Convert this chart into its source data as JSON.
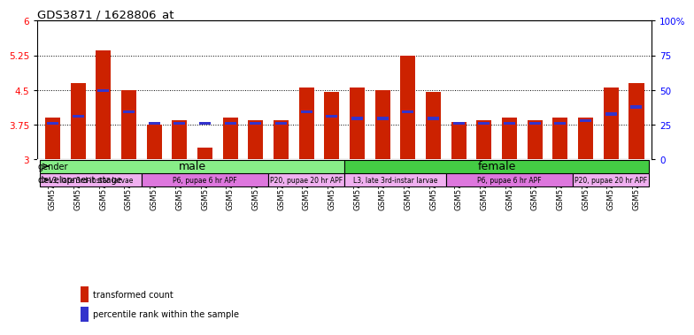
{
  "title": "GDS3871 / 1628806_at",
  "samples": [
    "GSM572821",
    "GSM572822",
    "GSM572823",
    "GSM572824",
    "GSM572829",
    "GSM572830",
    "GSM572831",
    "GSM572832",
    "GSM572837",
    "GSM572838",
    "GSM572839",
    "GSM572840",
    "GSM572817",
    "GSM572818",
    "GSM572819",
    "GSM572820",
    "GSM572825",
    "GSM572826",
    "GSM572827",
    "GSM572828",
    "GSM572833",
    "GSM572834",
    "GSM572835",
    "GSM572836"
  ],
  "red_values": [
    3.9,
    4.65,
    5.35,
    4.5,
    3.75,
    3.85,
    3.25,
    3.9,
    3.85,
    3.85,
    4.55,
    4.45,
    4.55,
    4.5,
    5.25,
    4.45,
    3.8,
    3.85,
    3.9,
    3.85,
    3.9,
    3.9,
    4.55,
    4.65
  ],
  "blue_values": [
    3.75,
    3.9,
    4.45,
    4.0,
    3.75,
    3.75,
    3.75,
    3.75,
    3.75,
    3.75,
    4.0,
    3.9,
    3.85,
    3.85,
    4.0,
    3.85,
    3.75,
    3.75,
    3.75,
    3.75,
    3.75,
    3.8,
    3.95,
    4.1
  ],
  "ylim_left": [
    3.0,
    6.0
  ],
  "ylim_right": [
    0,
    100
  ],
  "yticks_left": [
    3.0,
    3.75,
    4.5,
    5.25,
    6.0
  ],
  "yticks_right": [
    0,
    25,
    50,
    75,
    100
  ],
  "ytick_labels_left": [
    "3",
    "3.75",
    "4.5",
    "5.25",
    "6"
  ],
  "ytick_labels_right": [
    "0",
    "25",
    "50",
    "75",
    "100%"
  ],
  "hlines": [
    3.75,
    4.5,
    5.25
  ],
  "bar_color": "#cc2200",
  "blue_color": "#3333cc",
  "bar_width": 0.6,
  "gender_color_male": "#88ee88",
  "gender_color_female": "#44cc44",
  "stage_colors": [
    "#f0b0f0",
    "#dd77dd",
    "#f0b0f0"
  ],
  "stage_labels_male": [
    "L3, late 3rd-instar larvae",
    "P6, pupae 6 hr APF",
    "P20, pupae 20 hr APF"
  ],
  "stage_labels_female": [
    "L3, late 3rd-instar larvae",
    "P6, pupae 6 hr APF",
    "P20, pupae 20 hr APF"
  ],
  "stage_ranges_male": [
    [
      0,
      4
    ],
    [
      4,
      9
    ],
    [
      9,
      12
    ]
  ],
  "stage_ranges_female": [
    [
      12,
      16
    ],
    [
      16,
      21
    ],
    [
      21,
      24
    ]
  ],
  "legend_red": "transformed count",
  "legend_blue": "percentile rank within the sample",
  "background_color": "#ffffff"
}
